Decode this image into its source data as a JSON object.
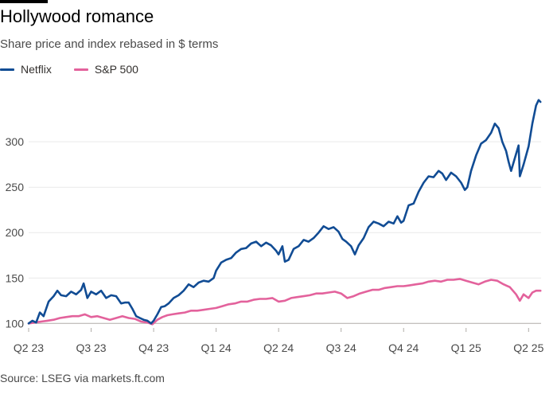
{
  "title": "Hollywood romance",
  "subtitle": "Share price and index rebased in $ terms",
  "source": "Source: LSEG via markets.ft.com",
  "colors": {
    "netflix": "#114c94",
    "sp500": "#e3629c",
    "grid": "#e9e9e9",
    "axis": "#4a4a4a"
  },
  "chart_data": {
    "type": "line",
    "x_units": "fractional quarter index (0 = start of Q2 23)",
    "x_tick_labels": [
      "Q2 23",
      "Q3 23",
      "Q4 23",
      "Q1 24",
      "Q2 24",
      "Q3 24",
      "Q4 24",
      "Q1 25",
      "Q2 25"
    ],
    "y_ticks": [
      100,
      150,
      200,
      250,
      300
    ],
    "ylim": [
      95,
      358
    ],
    "xlim": [
      0,
      8.2
    ],
    "grid": "horizontal",
    "legend": "top-left",
    "series": [
      {
        "name": "Netflix",
        "points": [
          [
            0.0,
            100
          ],
          [
            0.06,
            103
          ],
          [
            0.12,
            101
          ],
          [
            0.18,
            112
          ],
          [
            0.24,
            108
          ],
          [
            0.32,
            124
          ],
          [
            0.4,
            130
          ],
          [
            0.46,
            136
          ],
          [
            0.52,
            131
          ],
          [
            0.6,
            130
          ],
          [
            0.68,
            135
          ],
          [
            0.76,
            132
          ],
          [
            0.84,
            137
          ],
          [
            0.88,
            144
          ],
          [
            0.94,
            128
          ],
          [
            1.0,
            135
          ],
          [
            1.08,
            132
          ],
          [
            1.16,
            136
          ],
          [
            1.24,
            128
          ],
          [
            1.32,
            131
          ],
          [
            1.4,
            130
          ],
          [
            1.48,
            122
          ],
          [
            1.54,
            123
          ],
          [
            1.6,
            123
          ],
          [
            1.66,
            116
          ],
          [
            1.72,
            108
          ],
          [
            1.78,
            106
          ],
          [
            1.84,
            104
          ],
          [
            1.9,
            103
          ],
          [
            1.96,
            100
          ],
          [
            2.0,
            103
          ],
          [
            2.06,
            110
          ],
          [
            2.12,
            118
          ],
          [
            2.18,
            119
          ],
          [
            2.24,
            122
          ],
          [
            2.32,
            128
          ],
          [
            2.4,
            131
          ],
          [
            2.48,
            136
          ],
          [
            2.56,
            143
          ],
          [
            2.64,
            140
          ],
          [
            2.72,
            145
          ],
          [
            2.8,
            147
          ],
          [
            2.88,
            146
          ],
          [
            2.96,
            150
          ],
          [
            3.0,
            158
          ],
          [
            3.08,
            167
          ],
          [
            3.16,
            170
          ],
          [
            3.24,
            172
          ],
          [
            3.32,
            178
          ],
          [
            3.4,
            182
          ],
          [
            3.48,
            183
          ],
          [
            3.56,
            188
          ],
          [
            3.64,
            190
          ],
          [
            3.72,
            185
          ],
          [
            3.8,
            189
          ],
          [
            3.88,
            186
          ],
          [
            3.96,
            180
          ],
          [
            4.0,
            176
          ],
          [
            4.06,
            185
          ],
          [
            4.1,
            168
          ],
          [
            4.16,
            170
          ],
          [
            4.24,
            182
          ],
          [
            4.32,
            185
          ],
          [
            4.4,
            192
          ],
          [
            4.48,
            190
          ],
          [
            4.56,
            194
          ],
          [
            4.64,
            200
          ],
          [
            4.72,
            207
          ],
          [
            4.8,
            204
          ],
          [
            4.88,
            206
          ],
          [
            4.96,
            201
          ],
          [
            5.02,
            193
          ],
          [
            5.08,
            190
          ],
          [
            5.16,
            185
          ],
          [
            5.22,
            176
          ],
          [
            5.28,
            186
          ],
          [
            5.36,
            194
          ],
          [
            5.44,
            206
          ],
          [
            5.52,
            212
          ],
          [
            5.6,
            210
          ],
          [
            5.68,
            207
          ],
          [
            5.76,
            212
          ],
          [
            5.84,
            210
          ],
          [
            5.9,
            218
          ],
          [
            5.96,
            211
          ],
          [
            6.0,
            213
          ],
          [
            6.08,
            230
          ],
          [
            6.16,
            232
          ],
          [
            6.24,
            245
          ],
          [
            6.32,
            255
          ],
          [
            6.4,
            262
          ],
          [
            6.48,
            261
          ],
          [
            6.56,
            268
          ],
          [
            6.62,
            265
          ],
          [
            6.68,
            258
          ],
          [
            6.76,
            266
          ],
          [
            6.84,
            262
          ],
          [
            6.92,
            255
          ],
          [
            6.98,
            247
          ],
          [
            7.02,
            250
          ],
          [
            7.08,
            268
          ],
          [
            7.16,
            285
          ],
          [
            7.24,
            298
          ],
          [
            7.32,
            302
          ],
          [
            7.4,
            310
          ],
          [
            7.46,
            320
          ],
          [
            7.52,
            315
          ],
          [
            7.58,
            300
          ],
          [
            7.64,
            290
          ],
          [
            7.68,
            278
          ],
          [
            7.72,
            268
          ],
          [
            7.78,
            282
          ],
          [
            7.84,
            296
          ],
          [
            7.86,
            262
          ],
          [
            7.92,
            275
          ],
          [
            8.0,
            295
          ],
          [
            8.06,
            320
          ],
          [
            8.12,
            340
          ],
          [
            8.16,
            346
          ],
          [
            8.19,
            344
          ]
        ]
      },
      {
        "name": "S&P 500",
        "points": [
          [
            0.0,
            100
          ],
          [
            0.1,
            101
          ],
          [
            0.2,
            102
          ],
          [
            0.3,
            103
          ],
          [
            0.4,
            104
          ],
          [
            0.5,
            106
          ],
          [
            0.6,
            107
          ],
          [
            0.7,
            108
          ],
          [
            0.8,
            108
          ],
          [
            0.9,
            110
          ],
          [
            1.0,
            107
          ],
          [
            1.1,
            108
          ],
          [
            1.2,
            106
          ],
          [
            1.3,
            104
          ],
          [
            1.4,
            106
          ],
          [
            1.5,
            108
          ],
          [
            1.6,
            106
          ],
          [
            1.7,
            105
          ],
          [
            1.8,
            102
          ],
          [
            1.9,
            101
          ],
          [
            1.98,
            99
          ],
          [
            2.06,
            104
          ],
          [
            2.14,
            107
          ],
          [
            2.22,
            109
          ],
          [
            2.3,
            110
          ],
          [
            2.4,
            111
          ],
          [
            2.5,
            112
          ],
          [
            2.6,
            114
          ],
          [
            2.7,
            114
          ],
          [
            2.8,
            115
          ],
          [
            2.9,
            116
          ],
          [
            3.0,
            117
          ],
          [
            3.1,
            119
          ],
          [
            3.2,
            121
          ],
          [
            3.3,
            122
          ],
          [
            3.4,
            124
          ],
          [
            3.5,
            124
          ],
          [
            3.6,
            126
          ],
          [
            3.7,
            127
          ],
          [
            3.8,
            127
          ],
          [
            3.9,
            128
          ],
          [
            4.0,
            124
          ],
          [
            4.1,
            125
          ],
          [
            4.2,
            128
          ],
          [
            4.3,
            129
          ],
          [
            4.4,
            130
          ],
          [
            4.5,
            131
          ],
          [
            4.6,
            133
          ],
          [
            4.7,
            133
          ],
          [
            4.8,
            134
          ],
          [
            4.9,
            135
          ],
          [
            5.0,
            133
          ],
          [
            5.1,
            128
          ],
          [
            5.2,
            130
          ],
          [
            5.3,
            133
          ],
          [
            5.4,
            135
          ],
          [
            5.5,
            137
          ],
          [
            5.6,
            137
          ],
          [
            5.7,
            139
          ],
          [
            5.8,
            140
          ],
          [
            5.9,
            141
          ],
          [
            6.0,
            141
          ],
          [
            6.1,
            142
          ],
          [
            6.2,
            143
          ],
          [
            6.3,
            144
          ],
          [
            6.4,
            146
          ],
          [
            6.5,
            147
          ],
          [
            6.6,
            146
          ],
          [
            6.7,
            148
          ],
          [
            6.8,
            148
          ],
          [
            6.9,
            149
          ],
          [
            7.0,
            147
          ],
          [
            7.1,
            145
          ],
          [
            7.2,
            143
          ],
          [
            7.3,
            146
          ],
          [
            7.4,
            148
          ],
          [
            7.5,
            147
          ],
          [
            7.6,
            143
          ],
          [
            7.7,
            140
          ],
          [
            7.8,
            132
          ],
          [
            7.86,
            125
          ],
          [
            7.92,
            132
          ],
          [
            8.0,
            128
          ],
          [
            8.06,
            134
          ],
          [
            8.12,
            136
          ],
          [
            8.19,
            136
          ]
        ]
      }
    ]
  }
}
